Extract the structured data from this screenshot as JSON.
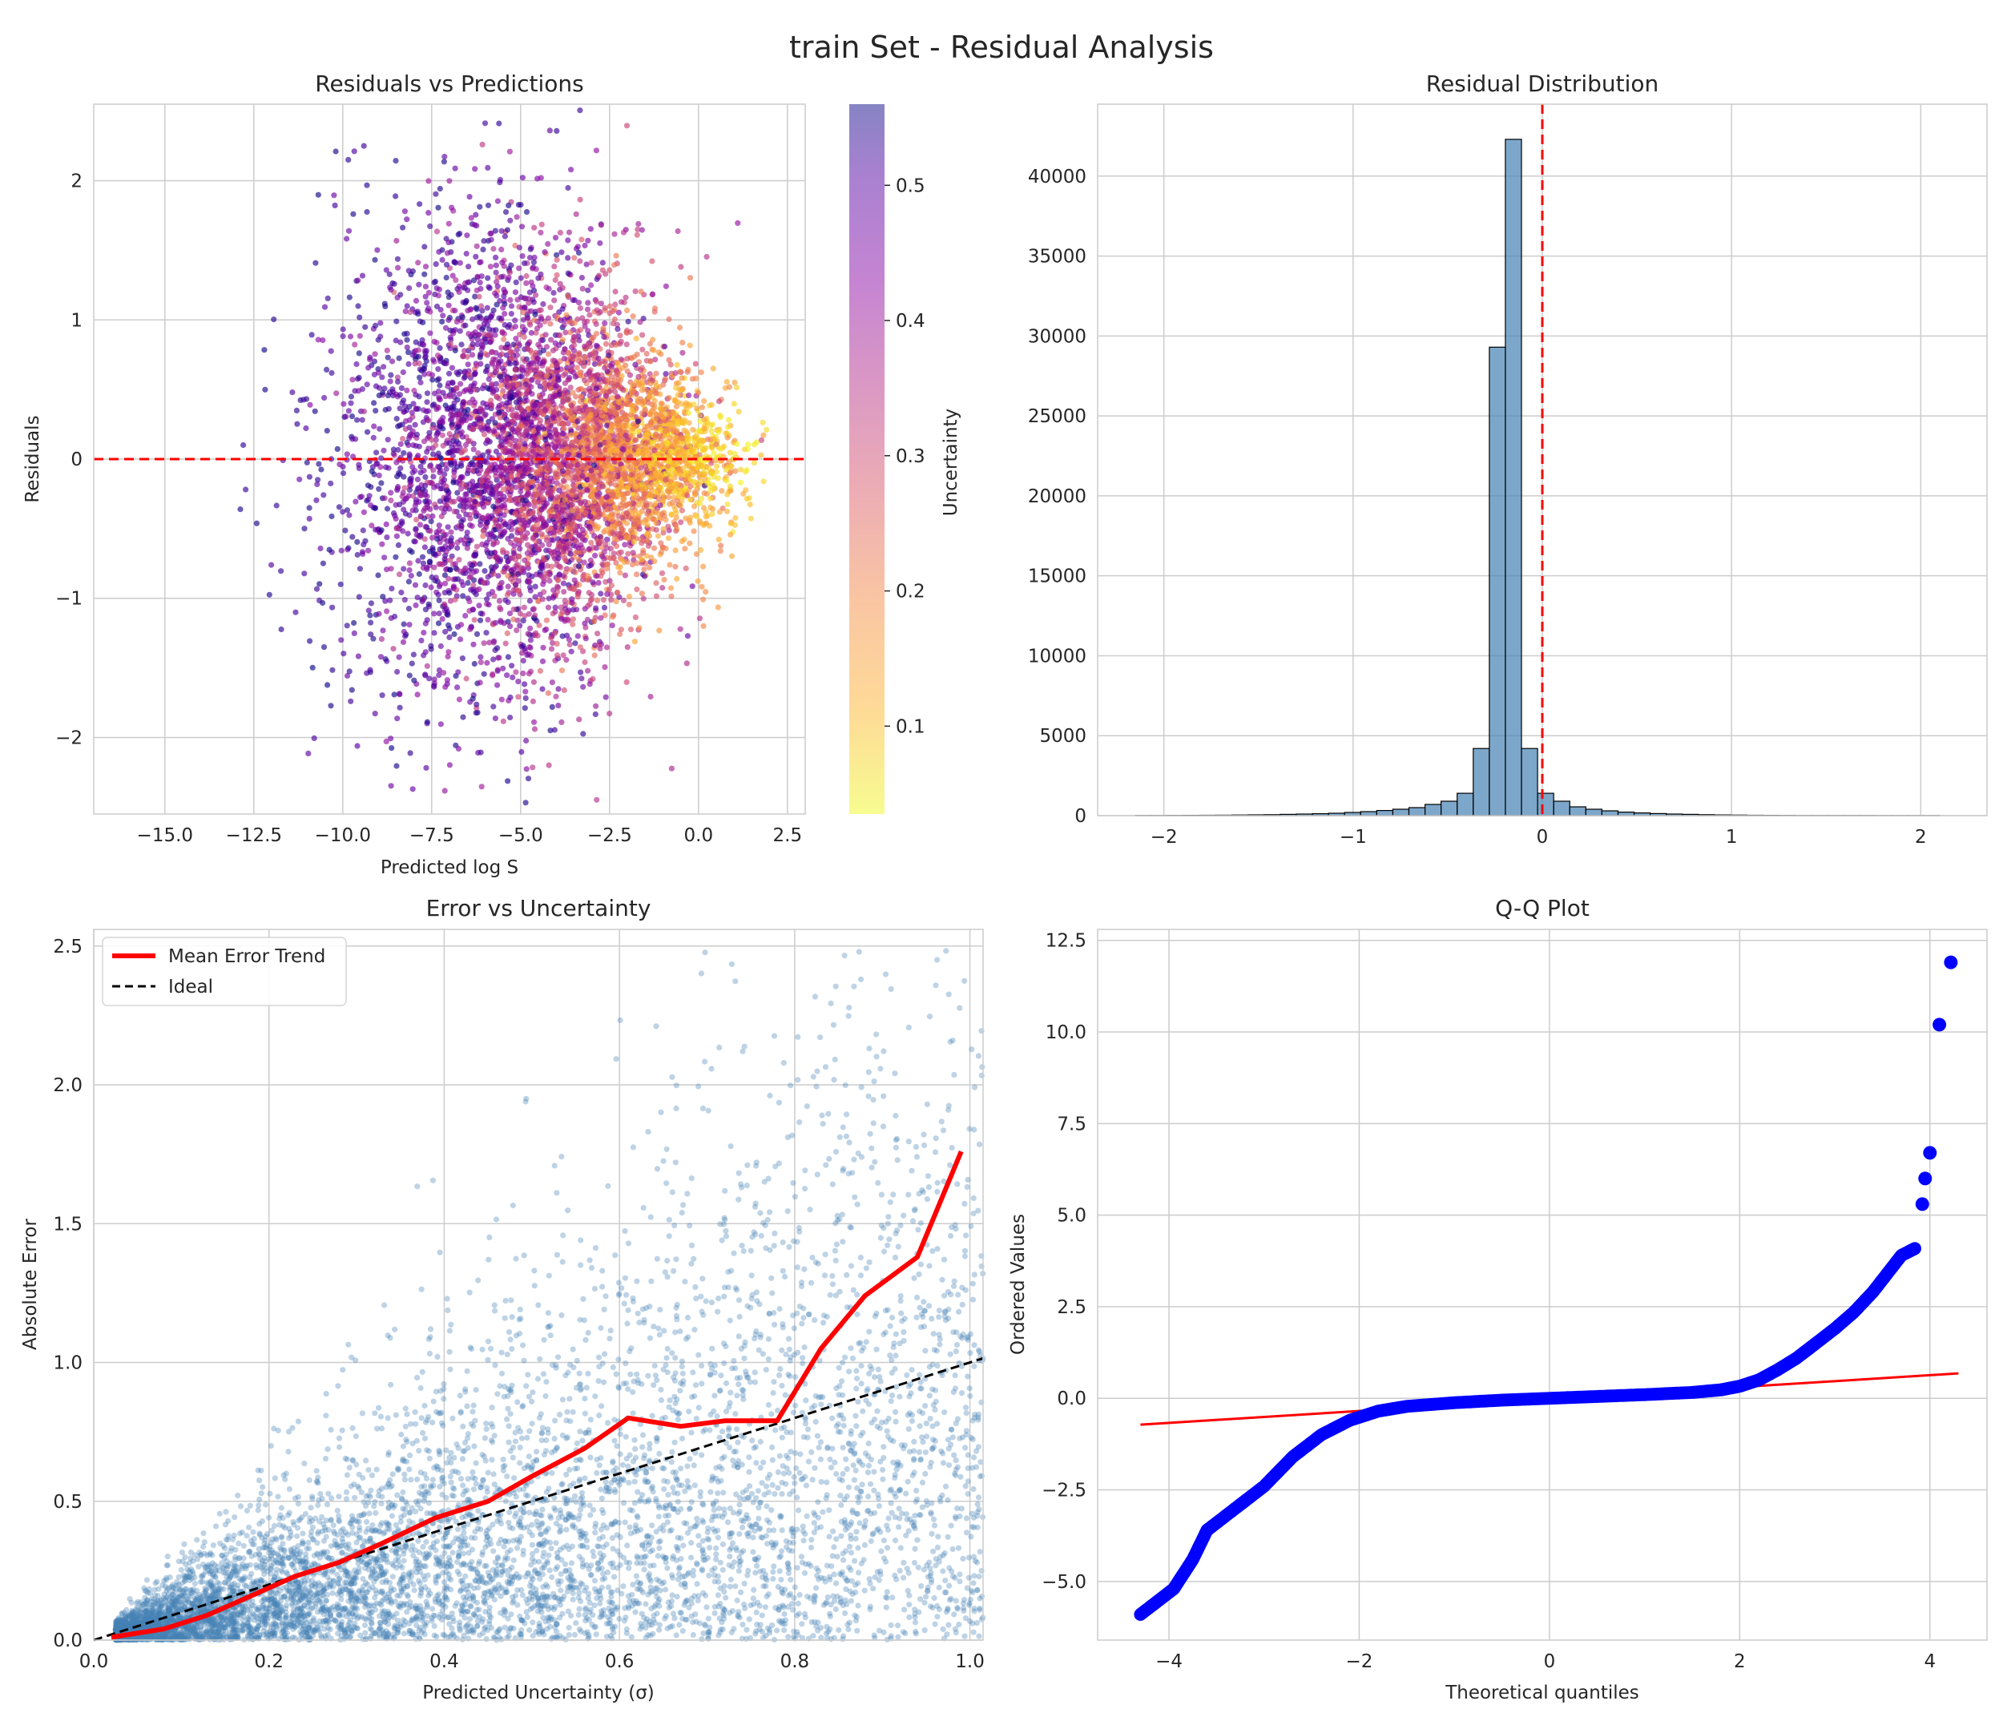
{
  "figure": {
    "title": "train Set - Residual Analysis",
    "colors": {
      "grid": "#cccccc",
      "zero_line": "#ff0000",
      "hist_fill": "#4682b4",
      "steelblue": "#4682b4",
      "trend": "#ff0000",
      "ideal": "#000000",
      "qq_points": "#0000ff",
      "qq_line": "#ff0000"
    }
  },
  "chart_data": [
    {
      "type": "scatter",
      "title": "Residuals vs Predictions",
      "xlabel": "Predicted log S",
      "ylabel": "Residuals",
      "xlim": [
        -17,
        3
      ],
      "ylim": [
        -2.55,
        2.55
      ],
      "xticks": [
        -15,
        -12.5,
        -10,
        -7.5,
        -5,
        -2.5,
        0,
        2.5
      ],
      "xtick_labels": [
        "−15.0",
        "−12.5",
        "−10.0",
        "−7.5",
        "−5.0",
        "−2.5",
        "0.0",
        "2.5"
      ],
      "yticks": [
        -2,
        -1,
        0,
        1,
        2
      ],
      "ytick_labels": [
        "−2",
        "−1",
        "0",
        "1",
        "2"
      ],
      "reference_line": {
        "y": 0,
        "style": "dashed",
        "color": "#ff0000"
      },
      "colorbar": {
        "label": "Uncertainty",
        "range": [
          0.035,
          0.56
        ],
        "ticks": [
          0.1,
          0.2,
          0.3,
          0.4,
          0.5
        ],
        "tick_labels": [
          "0.1",
          "0.2",
          "0.3",
          "0.4",
          "0.5"
        ],
        "colormap": "plasma_r"
      },
      "points_note": "dense cloud centred near x = 0.5 (low uncertainty, yellow) spreading to x = -10 (high uncertainty, purple)"
    },
    {
      "type": "bar",
      "title": "Residual Distribution",
      "xlabel": "",
      "ylabel": "",
      "xlim": [
        -2.35,
        2.35
      ],
      "ylim": [
        0,
        44500
      ],
      "xticks": [
        -2,
        -1,
        0,
        1,
        2
      ],
      "xtick_labels": [
        "−2",
        "−1",
        "0",
        "1",
        "2"
      ],
      "yticks": [
        0,
        5000,
        10000,
        15000,
        20000,
        25000,
        30000,
        35000,
        40000
      ],
      "ytick_labels": [
        "0",
        "5000",
        "10000",
        "15000",
        "20000",
        "25000",
        "30000",
        "35000",
        "40000"
      ],
      "reference_line": {
        "x": 0,
        "style": "dashed",
        "color": "#ff0000"
      },
      "bin_start": -2.15,
      "bin_width": 0.085,
      "values": [
        10,
        10,
        15,
        20,
        25,
        30,
        40,
        50,
        60,
        80,
        100,
        120,
        150,
        200,
        250,
        320,
        400,
        500,
        700,
        900,
        1400,
        4200,
        29300,
        42300,
        4200,
        1400,
        900,
        550,
        400,
        300,
        220,
        170,
        130,
        100,
        80,
        60,
        45,
        35,
        25,
        20,
        15,
        12,
        10,
        10,
        8,
        8,
        6,
        6,
        5,
        5
      ]
    },
    {
      "type": "scatter",
      "title": "Error vs Uncertainty",
      "xlabel": "Predicted Uncertainty (σ)",
      "ylabel": "Absolute Error",
      "xlim": [
        0,
        1.015
      ],
      "ylim": [
        0,
        2.56
      ],
      "xticks": [
        0,
        0.2,
        0.4,
        0.6,
        0.8,
        1.0
      ],
      "xtick_labels": [
        "0.0",
        "0.2",
        "0.4",
        "0.6",
        "0.8",
        "1.0"
      ],
      "yticks": [
        0,
        0.5,
        1.0,
        1.5,
        2.0,
        2.5
      ],
      "ytick_labels": [
        "0.0",
        "0.5",
        "1.0",
        "1.5",
        "2.0",
        "2.5"
      ],
      "legend": {
        "position": "upper-left",
        "entries": [
          "Mean Error Trend",
          "Ideal"
        ]
      },
      "series": [
        {
          "name": "Mean Error Trend",
          "type": "line",
          "color": "#ff0000",
          "x": [
            0.02,
            0.08,
            0.13,
            0.18,
            0.23,
            0.28,
            0.33,
            0.39,
            0.45,
            0.5,
            0.56,
            0.61,
            0.67,
            0.72,
            0.78,
            0.83,
            0.88,
            0.94,
            0.99
          ],
          "y": [
            0.01,
            0.04,
            0.09,
            0.16,
            0.23,
            0.28,
            0.35,
            0.44,
            0.5,
            0.59,
            0.69,
            0.8,
            0.77,
            0.79,
            0.79,
            1.05,
            1.24,
            1.38,
            1.76
          ]
        },
        {
          "name": "Ideal",
          "type": "line",
          "style": "dashed",
          "color": "#000000",
          "x": [
            0,
            1.015
          ],
          "y": [
            0,
            1.015
          ]
        }
      ],
      "points_note": "dense steelblue cloud between sigma 0.02 and 0.45 with errors below ~0.8, sparser above"
    },
    {
      "type": "scatter",
      "title": "Q-Q Plot",
      "xlabel": "Theoretical quantiles",
      "ylabel": "Ordered Values",
      "xlim": [
        -4.75,
        4.6
      ],
      "ylim": [
        -6.6,
        12.8
      ],
      "xticks": [
        -4,
        -2,
        0,
        2,
        4
      ],
      "xtick_labels": [
        "−4",
        "−2",
        "0",
        "2",
        "4"
      ],
      "yticks": [
        -5,
        -2.5,
        0,
        2.5,
        5,
        7.5,
        10,
        12.5
      ],
      "ytick_labels": [
        "−5.0",
        "−2.5",
        "0.0",
        "2.5",
        "5.0",
        "7.5",
        "10.0",
        "12.5"
      ],
      "reference_line": {
        "x": [
          -4.3,
          4.3
        ],
        "y": [
          -0.72,
          0.68
        ],
        "color": "#ff0000"
      },
      "curve": {
        "x": [
          -4.3,
          -4.1,
          -3.95,
          -3.85,
          -3.75,
          -3.6,
          -3.4,
          -3.2,
          -3.0,
          -2.7,
          -2.4,
          -2.1,
          -1.8,
          -1.5,
          -1.0,
          -0.5,
          0,
          0.5,
          1.0,
          1.5,
          1.8,
          2.0,
          2.2,
          2.4,
          2.6,
          2.8,
          3.0,
          3.2,
          3.4,
          3.55,
          3.7,
          3.85
        ],
        "y": [
          -5.9,
          -5.5,
          -5.2,
          -4.8,
          -4.4,
          -3.6,
          -3.2,
          -2.8,
          -2.4,
          -1.6,
          -1.0,
          -0.6,
          -0.35,
          -0.22,
          -0.12,
          -0.05,
          0,
          0.05,
          0.1,
          0.16,
          0.23,
          0.33,
          0.5,
          0.78,
          1.1,
          1.5,
          1.9,
          2.35,
          2.9,
          3.4,
          3.9,
          4.1
        ]
      },
      "outliers": {
        "x": [
          3.92,
          3.95,
          4.0,
          4.1,
          4.22
        ],
        "y": [
          5.3,
          6.0,
          6.7,
          10.2,
          11.9
        ]
      }
    }
  ]
}
